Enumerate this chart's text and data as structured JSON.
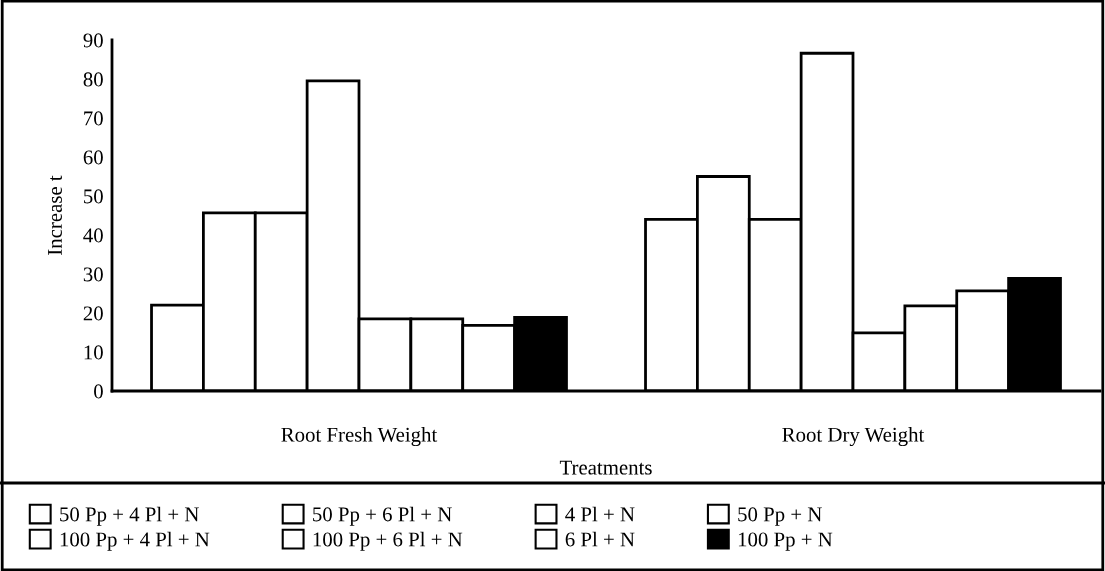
{
  "chart_data": {
    "type": "bar",
    "xlabel": "Treatments",
    "ylabel": "Increase t",
    "categories": [
      "Root Fresh Weight",
      "Root Dry Weight"
    ],
    "series": [
      {
        "name": "50 Pp + 4 Pl + N",
        "color": "#ffffff",
        "values": [
          22.0,
          44.0
        ]
      },
      {
        "name": "100 Pp + 4 Pl + N",
        "color": "#ffffff",
        "values": [
          45.7,
          55.0
        ]
      },
      {
        "name": "50 Pp + 6 Pl + N",
        "color": "#ffffff",
        "values": [
          45.7,
          44.0
        ]
      },
      {
        "name": "100 Pp + 6 Pl + N",
        "color": "#ffffff",
        "values": [
          79.5,
          86.6
        ]
      },
      {
        "name": "4 Pl + N",
        "color": "#ffffff",
        "values": [
          18.5,
          14.9
        ]
      },
      {
        "name": "6 Pl + N",
        "color": "#ffffff",
        "values": [
          18.5,
          21.8
        ]
      },
      {
        "name": "50 Pp + N",
        "color": "#ffffff",
        "values": [
          16.8,
          25.7
        ]
      },
      {
        "name": "100 Pp + N",
        "color": "#000000",
        "values": [
          18.9,
          28.9
        ]
      }
    ],
    "ylim": [
      0,
      90
    ],
    "yticks": [
      0,
      10,
      20,
      30,
      40,
      50,
      60,
      70,
      80,
      90
    ],
    "grid": false,
    "legend": "bottom"
  }
}
